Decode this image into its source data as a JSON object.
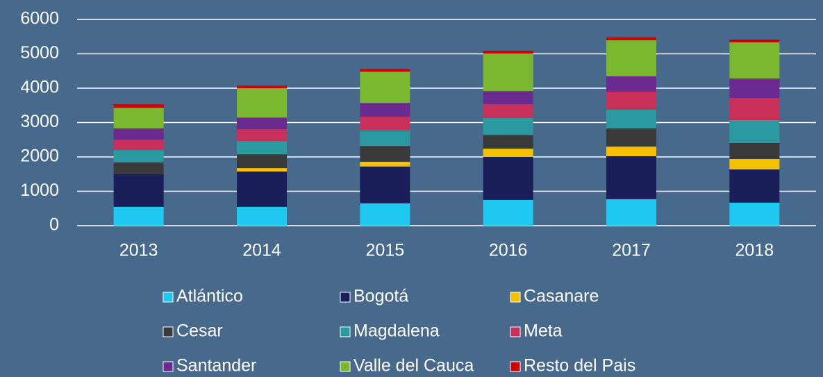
{
  "chart_data": {
    "type": "stacked_bar",
    "categories": [
      "2013",
      "2014",
      "2015",
      "2016",
      "2017",
      "2018"
    ],
    "series": [
      {
        "name": "Atlántico",
        "color": "#1ec8f0",
        "values": [
          550,
          550,
          650,
          750,
          770,
          670
        ]
      },
      {
        "name": "Bogotá",
        "color": "#1a1f5a",
        "values": [
          950,
          1025,
          1070,
          1250,
          1250,
          965
        ]
      },
      {
        "name": "Casanare",
        "color": "#f5c000",
        "values": [
          0,
          100,
          140,
          240,
          280,
          305
        ]
      },
      {
        "name": "Cesar",
        "color": "#3a3a3a",
        "values": [
          340,
          400,
          460,
          400,
          530,
          465
        ]
      },
      {
        "name": "Magdalena",
        "color": "#2a9aa0",
        "values": [
          360,
          385,
          450,
          490,
          545,
          665
        ]
      },
      {
        "name": "Meta",
        "color": "#c8305a",
        "values": [
          300,
          345,
          400,
          400,
          525,
          645
        ]
      },
      {
        "name": "Santander",
        "color": "#6a2a90",
        "values": [
          330,
          340,
          400,
          385,
          445,
          565
        ]
      },
      {
        "name": "Valle del Cauca",
        "color": "#7ab830",
        "values": [
          600,
          850,
          910,
          1090,
          1050,
          1055
        ]
      },
      {
        "name": "Resto del Pais",
        "color": "#cc0000",
        "values": [
          100,
          80,
          80,
          80,
          80,
          80
        ]
      }
    ],
    "ylim": [
      0,
      6000
    ],
    "yticks": [
      0,
      1000,
      2000,
      3000,
      4000,
      5000,
      6000
    ],
    "grid": true
  }
}
